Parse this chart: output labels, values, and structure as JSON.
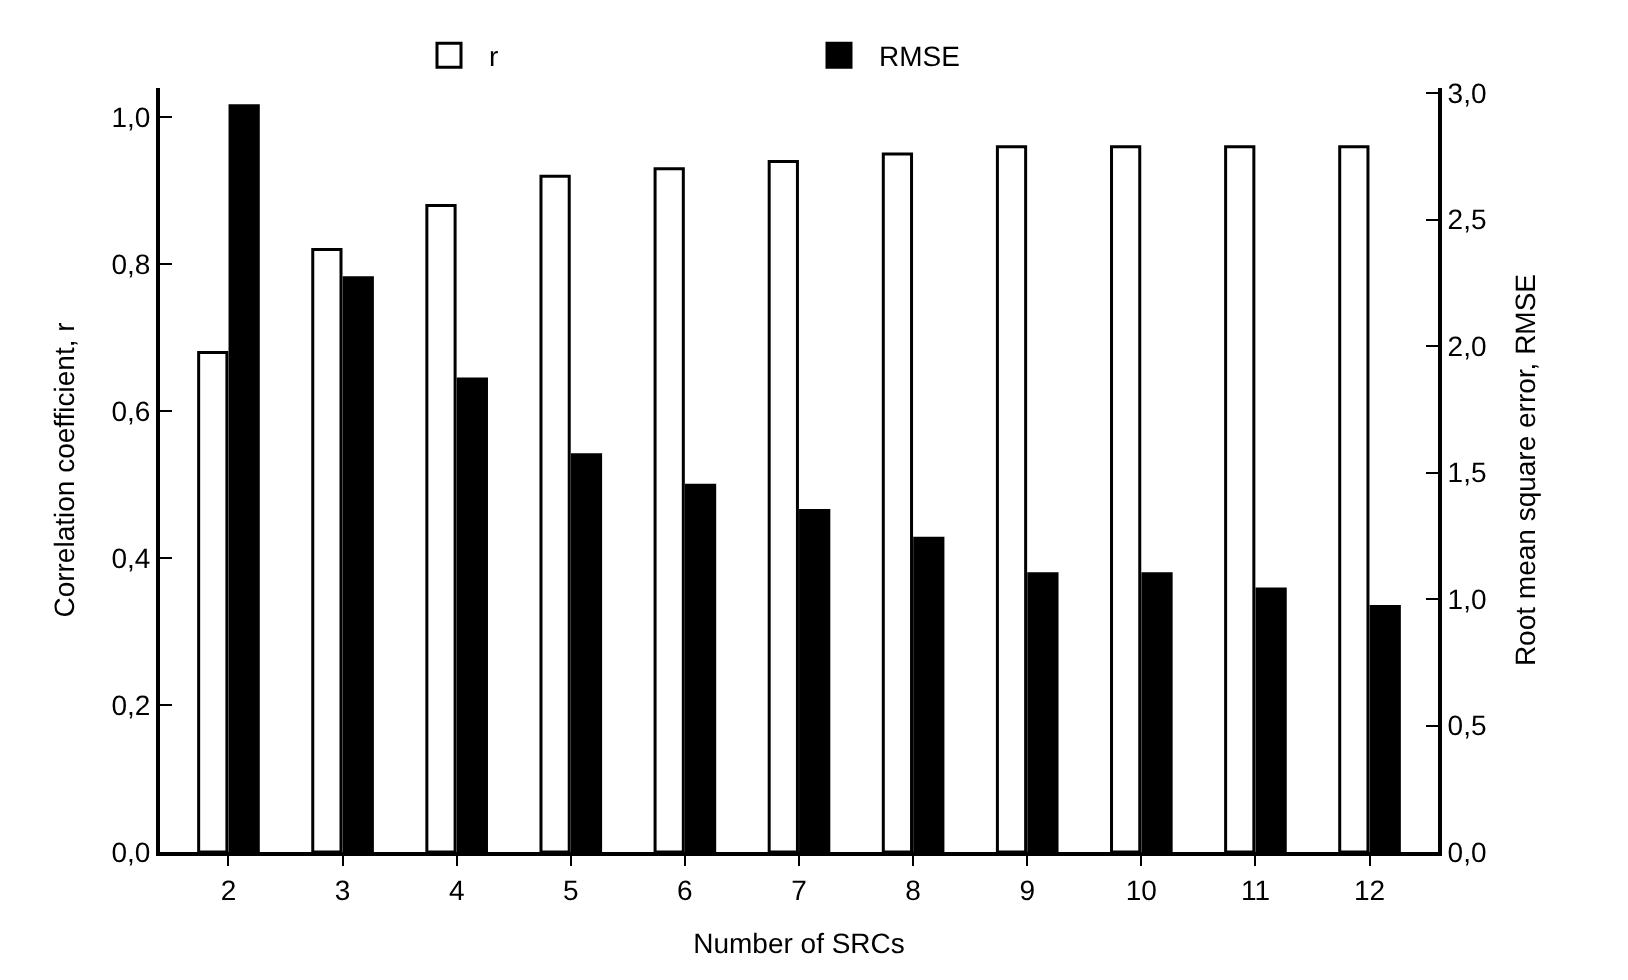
{
  "chart_data": {
    "type": "bar",
    "xlabel": "Number of SRCs",
    "ylabel": "Correlation coefficient, r",
    "y2label": "Root mean square error, RMSE",
    "categories": [
      "2",
      "3",
      "4",
      "5",
      "6",
      "7",
      "8",
      "9",
      "10",
      "11",
      "12"
    ],
    "series": [
      {
        "name": "r",
        "color": "#ffffff",
        "values": [
          0.68,
          0.82,
          0.88,
          0.92,
          0.93,
          0.94,
          0.95,
          0.96,
          0.96,
          0.96,
          0.96
        ]
      },
      {
        "name": "RMSE",
        "color": "#000000",
        "axis": "y2",
        "values": [
          2.95,
          2.27,
          1.87,
          1.57,
          1.45,
          1.35,
          1.24,
          1.1,
          1.1,
          1.04,
          0.97
        ]
      }
    ],
    "ylim": [
      0,
      1.04
    ],
    "yticks": [
      {
        "value": 0,
        "label": "0,0"
      },
      {
        "value": 0.2,
        "label": "0,2"
      },
      {
        "value": 0.4,
        "label": "0,4"
      },
      {
        "value": 0.6,
        "label": "0,6"
      },
      {
        "value": 0.8,
        "label": "0,8"
      },
      {
        "value": 1.0,
        "label": "1,0"
      }
    ],
    "y2lim": [
      0,
      3.02
    ],
    "y2ticks": [
      {
        "value": 0,
        "label": "0,0"
      },
      {
        "value": 0.5,
        "label": "0,5"
      },
      {
        "value": 1.0,
        "label": "1,0"
      },
      {
        "value": 1.5,
        "label": "1,5"
      },
      {
        "value": 2.0,
        "label": "2,0"
      },
      {
        "value": 2.5,
        "label": "2,5"
      },
      {
        "value": 3.0,
        "label": "3,0"
      }
    ],
    "legend": "top"
  }
}
